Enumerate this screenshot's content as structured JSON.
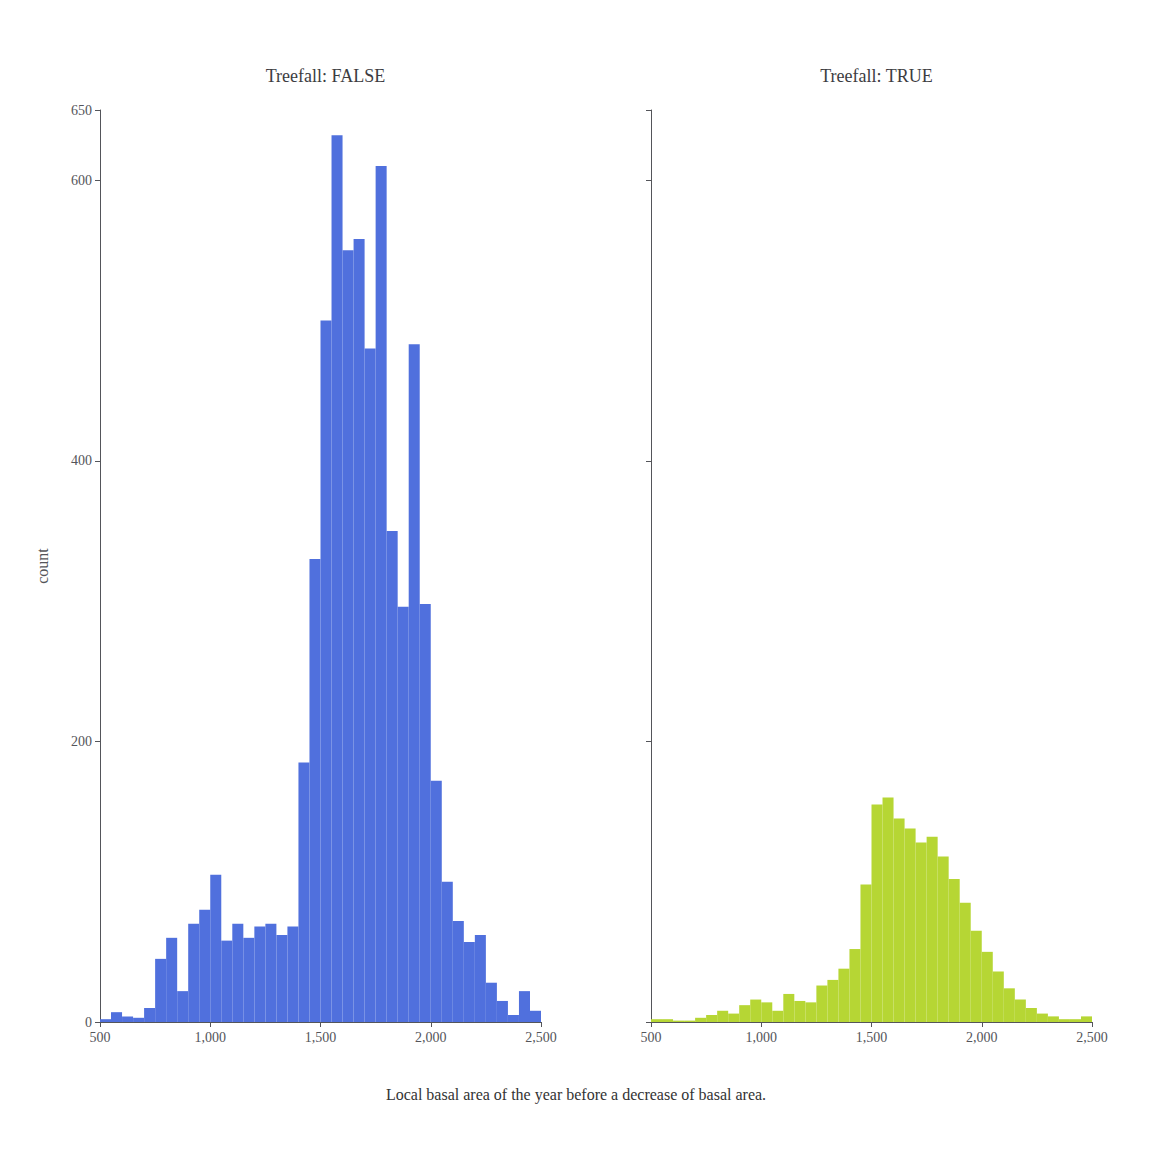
{
  "chart_data": [
    {
      "type": "histogram",
      "title": "Treefall: FALSE",
      "xlabel": "Local basal area of the year before a decrease of basal area.",
      "ylabel": "count",
      "bins": [
        500,
        550,
        600,
        650,
        700,
        750,
        800,
        850,
        900,
        950,
        1000,
        1050,
        1100,
        1150,
        1200,
        1250,
        1300,
        1350,
        1400,
        1450,
        1500,
        1550,
        1600,
        1650,
        1700,
        1750,
        1800,
        1850,
        1900,
        1950,
        2000,
        2050,
        2100,
        2150,
        2200,
        2250,
        2300,
        2350,
        2400,
        2450,
        2500
      ],
      "values": [
        2,
        7,
        4,
        3,
        10,
        45,
        60,
        22,
        70,
        80,
        105,
        58,
        70,
        60,
        68,
        70,
        62,
        68,
        185,
        330,
        500,
        632,
        550,
        558,
        480,
        610,
        350,
        296,
        483,
        298,
        172,
        100,
        72,
        57,
        62,
        28,
        15,
        5,
        22,
        8
      ],
      "xlim": [
        500,
        2500
      ],
      "ylim": [
        0,
        650
      ],
      "xticks": [
        500,
        1000,
        1500,
        2000,
        2500
      ],
      "yticks": [
        0,
        200,
        400,
        600
      ],
      "grid": false
    },
    {
      "type": "histogram",
      "title": "Treefall: TRUE",
      "bins": [
        500,
        550,
        600,
        650,
        700,
        750,
        800,
        850,
        900,
        950,
        1000,
        1050,
        1100,
        1150,
        1200,
        1250,
        1300,
        1350,
        1400,
        1450,
        1500,
        1550,
        1600,
        1650,
        1700,
        1750,
        1800,
        1850,
        1900,
        1950,
        2000,
        2050,
        2100,
        2150,
        2200,
        2250,
        2300,
        2350,
        2400,
        2450,
        2500
      ],
      "values": [
        2,
        2,
        1,
        1,
        3,
        5,
        8,
        6,
        12,
        16,
        14,
        8,
        20,
        15,
        14,
        26,
        30,
        38,
        52,
        98,
        155,
        160,
        145,
        138,
        128,
        132,
        118,
        102,
        85,
        65,
        50,
        36,
        24,
        16,
        10,
        6,
        4,
        2,
        2,
        4
      ],
      "xlim": [
        500,
        2500
      ],
      "ylim": [
        0,
        650
      ],
      "xticks": [
        500,
        1000,
        1500,
        2000,
        2500
      ],
      "yticks": [
        0,
        200,
        400,
        600
      ],
      "tick_labels": "x",
      "grid": false
    }
  ]
}
